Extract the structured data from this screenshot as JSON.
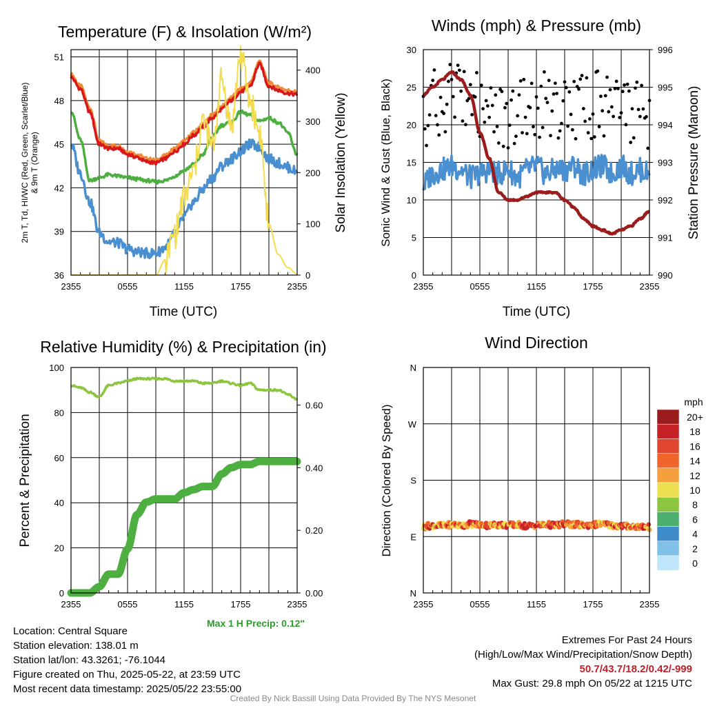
{
  "chart_data": [
    {
      "type": "line",
      "title": "Temperature (F) & Insolation (W/m²)",
      "xlabel": "Time (UTC)",
      "ylabel": "2m T, Td, HI/WC (Red, Green, Scarlet/Blue) & 9m T (Orange)",
      "ylabel_right": "Solar Insolation (Yellow)",
      "x_ticks": [
        "2355",
        "0555",
        "1155",
        "1755",
        "2355"
      ],
      "y_ticks": [
        "36",
        "39",
        "42",
        "45",
        "48",
        "51"
      ],
      "y2_ticks": [
        "0",
        "100",
        "200",
        "300",
        "400"
      ],
      "ylim": [
        36,
        51.5
      ],
      "y2lim": [
        0,
        440
      ],
      "x_hours": [
        0,
        1,
        2,
        3,
        4,
        5,
        6,
        7,
        8,
        9,
        10,
        11,
        12,
        13,
        14,
        15,
        16,
        17,
        18,
        19,
        20,
        21,
        22,
        23,
        24
      ],
      "series": [
        {
          "key": "orange",
          "color": "#f08a34",
          "values": [
            49.8,
            49.0,
            47.5,
            45.2,
            44.9,
            44.9,
            44.5,
            44.3,
            44.0,
            43.9,
            44.2,
            44.7,
            45.2,
            45.8,
            46.4,
            47.0,
            47.6,
            48.2,
            48.8,
            49.2,
            50.7,
            49.2,
            48.9,
            48.7,
            48.6
          ]
        },
        {
          "key": "red",
          "color": "#d7191c",
          "values": [
            49.6,
            48.8,
            47.2,
            45.0,
            44.7,
            44.7,
            44.3,
            44.1,
            43.8,
            43.7,
            44.0,
            44.5,
            45.0,
            45.6,
            46.2,
            46.8,
            47.4,
            48.0,
            48.6,
            49.0,
            50.5,
            49.0,
            48.7,
            48.5,
            48.4
          ]
        },
        {
          "key": "green",
          "color": "#4caf3f",
          "values": [
            47.3,
            45.3,
            42.5,
            42.7,
            42.9,
            42.8,
            42.7,
            42.6,
            42.5,
            42.4,
            42.5,
            42.8,
            43.2,
            43.6,
            44.3,
            45.5,
            46.3,
            46.5,
            47.2,
            47.0,
            46.6,
            46.8,
            46.5,
            45.8,
            44.3
          ]
        },
        {
          "key": "blue",
          "color": "#4a8fd0",
          "values": [
            45.0,
            43.0,
            41.0,
            38.9,
            38.3,
            38.2,
            37.8,
            37.6,
            37.5,
            37.5,
            37.9,
            38.8,
            40.0,
            41.0,
            41.9,
            42.7,
            43.5,
            44.0,
            44.5,
            45.0,
            44.8,
            44.0,
            43.7,
            43.4,
            43.1
          ]
        },
        {
          "key": "yellow",
          "color": "#f4dc4f",
          "values": [
            0,
            0,
            0,
            0,
            0,
            0,
            0,
            0,
            0,
            0,
            30,
            80,
            150,
            200,
            300,
            250,
            380,
            290,
            430,
            340,
            280,
            100,
            40,
            15,
            2
          ],
          "axis": "right"
        }
      ]
    },
    {
      "type": "line",
      "title": "Winds (mph) & Pressure (mb)",
      "xlabel": "Time (UTC)",
      "ylabel": "Sonic Wind & Gust (Blue, Black)",
      "ylabel_right": "Station Pressure (Maroon)",
      "x_ticks": [
        "2355",
        "0555",
        "1155",
        "1755",
        "2355"
      ],
      "y_ticks": [
        "0",
        "5",
        "10",
        "15",
        "20",
        "25",
        "30"
      ],
      "y2_ticks": [
        "990",
        "991",
        "992",
        "993",
        "994",
        "995",
        "996"
      ],
      "ylim": [
        0,
        30
      ],
      "y2lim": [
        990,
        996
      ],
      "x_hours": [
        0,
        1,
        2,
        3,
        4,
        5,
        6,
        7,
        8,
        9,
        10,
        11,
        12,
        13,
        14,
        15,
        16,
        17,
        18,
        19,
        20,
        21,
        22,
        23,
        24
      ],
      "series": [
        {
          "key": "wind",
          "color": "#4a8fd0",
          "values": [
            12.0,
            13.5,
            14.0,
            14.5,
            14.0,
            13.0,
            13.5,
            14.0,
            13.5,
            14.0,
            13.0,
            14.0,
            14.5,
            13.5,
            14.0,
            14.0,
            14.5,
            13.5,
            14.0,
            14.5,
            13.5,
            14.5,
            13.5,
            14.0,
            13.5
          ]
        },
        {
          "key": "gust",
          "color": "#000000",
          "values": [
            20.0,
            23.0,
            22.0,
            24.0,
            24.5,
            23.0,
            22.5,
            21.5,
            22.0,
            21.0,
            22.0,
            21.5,
            22.5,
            23.0,
            22.0,
            23.5,
            22.0,
            23.0,
            22.5,
            23.0,
            21.5,
            22.0,
            22.0,
            21.0,
            20.5
          ]
        },
        {
          "key": "pressure",
          "color": "#9b1c1c",
          "values": [
            994.8,
            995.0,
            995.2,
            995.4,
            995.2,
            994.8,
            993.8,
            993.1,
            992.2,
            992.0,
            992.0,
            992.1,
            992.2,
            992.2,
            992.2,
            992.0,
            991.8,
            991.5,
            991.3,
            991.2,
            991.1,
            991.2,
            991.3,
            991.5,
            991.7
          ],
          "axis": "right"
        }
      ]
    },
    {
      "type": "line",
      "title": "Relative Humidity (%) & Precipitation (in)",
      "ylabel": "Percent & Precipitation",
      "x_ticks": [
        "2355",
        "0555",
        "1155",
        "1755",
        "2355"
      ],
      "y_ticks": [
        "0",
        "20",
        "40",
        "60",
        "80",
        "100"
      ],
      "y2_ticks": [
        "0.00",
        "0.20",
        "0.40",
        "0.60"
      ],
      "ylim": [
        0,
        100
      ],
      "y2lim": [
        0,
        0.72
      ],
      "x_hours": [
        0,
        1,
        2,
        3,
        4,
        5,
        6,
        7,
        8,
        9,
        10,
        11,
        12,
        13,
        14,
        15,
        16,
        17,
        18,
        19,
        20,
        21,
        22,
        23,
        24
      ],
      "series": [
        {
          "key": "rh",
          "color": "#8cc63f",
          "values": [
            92,
            91,
            89,
            87,
            92,
            93,
            94,
            95,
            95,
            95,
            95,
            94,
            94,
            94,
            93,
            93,
            94,
            93,
            92,
            93,
            90,
            90,
            90,
            88,
            86
          ]
        },
        {
          "key": "precip",
          "color": "#4caf3f",
          "values": [
            0.0,
            0.0,
            0.0,
            0.02,
            0.06,
            0.06,
            0.14,
            0.25,
            0.29,
            0.3,
            0.3,
            0.3,
            0.32,
            0.33,
            0.34,
            0.34,
            0.38,
            0.4,
            0.41,
            0.41,
            0.42,
            0.42,
            0.42,
            0.42,
            0.42
          ],
          "axis": "right"
        }
      ]
    },
    {
      "type": "scatter",
      "title": "Wind Direction",
      "ylabel": "Direction (Colored By Speed)",
      "x_ticks": [
        "2355",
        "0555",
        "1155",
        "1755",
        "2355"
      ],
      "y_ticks": [
        "N",
        "E",
        "S",
        "W",
        "N"
      ],
      "ylim": [
        0,
        360
      ],
      "x_hours": [
        0,
        1,
        2,
        3,
        4,
        5,
        6,
        7,
        8,
        9,
        10,
        11,
        12,
        13,
        14,
        15,
        16,
        17,
        18,
        19,
        20,
        21,
        22,
        23,
        24
      ],
      "series": [
        {
          "key": "direction",
          "values": [
            106,
            108,
            107,
            109,
            108,
            110,
            109,
            108,
            109,
            108,
            109,
            107,
            108,
            109,
            108,
            110,
            109,
            108,
            109,
            110,
            108,
            107,
            106,
            106,
            105
          ]
        }
      ],
      "colorbar": {
        "unit": "mph",
        "labels": [
          "20+",
          "18",
          "16",
          "14",
          "12",
          "10",
          "8",
          "6",
          "4",
          "2",
          "0"
        ],
        "colors": [
          "#9b1c1c",
          "#c62127",
          "#e0452e",
          "#f0652b",
          "#f6a03d",
          "#ece050",
          "#8cc63f",
          "#4caf6e",
          "#3f8ccb",
          "#7fbfe8",
          "#bfe6f8"
        ]
      }
    }
  ],
  "titles": {
    "temp": "Temperature (F) & Insolation (W/m²)",
    "wind": "Winds (mph) & Pressure (mb)",
    "rh": "Relative Humidity (%) & Precipitation (in)",
    "dir": "Wind Direction"
  },
  "labels": {
    "time": "Time (UTC)",
    "temp_left_1": "2m T, Td, HI/WC (Red, Green, Scarlet/Blue)",
    "temp_left_2": "& 9m T (Orange)",
    "temp_right": "Solar Insolation (Yellow)",
    "wind_left": "Sonic Wind & Gust (Blue, Black)",
    "wind_right": "Station Pressure (Maroon)",
    "rh_left": "Percent & Precipitation",
    "dir_left": "Direction (Colored By Speed)",
    "colorbar_unit": "mph"
  },
  "info": {
    "max_precip": "Max 1 H Precip: 0.12\"",
    "location": "Location: Central Square",
    "elevation": "Station elevation: 138.01 m",
    "latlon": "Station lat/lon: 43.3261; -76.1044",
    "created": "Figure created on Thu, 2025-05-22, at 23:59 UTC",
    "recent": "Most recent data timestamp: 2025/05/22 23:55:00",
    "extremes_title": "Extremes For Past 24 Hours",
    "extremes_fields": "(High/Low/Max Wind/Precipitation/Snow Depth)",
    "extremes_values": "50.7/43.7/18.2/0.42/-999",
    "max_gust": "Max Gust: 29.8 mph On 05/22 at 1215 UTC",
    "credit": "Created By Nick Bassill Using Data Provided By The NYS Mesonet"
  }
}
